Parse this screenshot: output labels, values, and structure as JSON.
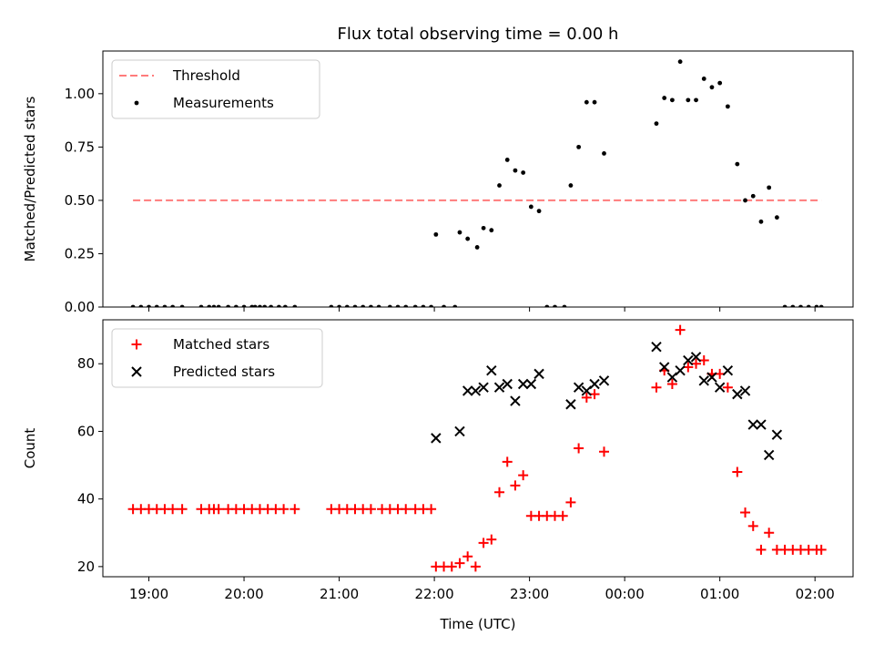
{
  "chart_data": [
    {
      "type": "scatter",
      "title": "Flux total observing time = 0.00 h",
      "xlabel": "",
      "ylabel": "Matched/Predicted stars",
      "xlim": [
        "18:31",
        "02:24"
      ],
      "ylim": [
        0,
        1.2
      ],
      "x_ticks": [
        "19:00",
        "20:00",
        "21:00",
        "22:00",
        "23:00",
        "00:00",
        "01:00",
        "02:00"
      ],
      "y_ticks": [
        "0.00",
        "0.25",
        "0.50",
        "0.75",
        "1.00"
      ],
      "legend_position": "top-left",
      "threshold": {
        "name": "Threshold",
        "y": 0.5,
        "x_range": [
          "18:50",
          "02:04"
        ],
        "color": "#ff7b7b",
        "style": "dashed"
      },
      "series": [
        {
          "name": "Measurements",
          "color": "#000000",
          "marker": "dot",
          "points": [
            [
              "18:50",
              0
            ],
            [
              "18:55",
              0
            ],
            [
              "19:00",
              0
            ],
            [
              "19:05",
              0
            ],
            [
              "19:10",
              0
            ],
            [
              "19:15",
              0
            ],
            [
              "19:21",
              0
            ],
            [
              "19:33",
              0
            ],
            [
              "19:38",
              0
            ],
            [
              "19:41",
              0
            ],
            [
              "19:44",
              0
            ],
            [
              "19:50",
              0
            ],
            [
              "19:55",
              0
            ],
            [
              "20:00",
              0
            ],
            [
              "20:05",
              0
            ],
            [
              "20:07",
              0
            ],
            [
              "20:10",
              0
            ],
            [
              "20:13",
              0
            ],
            [
              "20:17",
              0
            ],
            [
              "20:22",
              0
            ],
            [
              "20:26",
              0
            ],
            [
              "20:32",
              0
            ],
            [
              "20:55",
              0
            ],
            [
              "21:00",
              0
            ],
            [
              "21:05",
              0
            ],
            [
              "21:10",
              0
            ],
            [
              "21:15",
              0
            ],
            [
              "21:20",
              0
            ],
            [
              "21:25",
              0
            ],
            [
              "21:32",
              0
            ],
            [
              "21:37",
              0
            ],
            [
              "21:42",
              0
            ],
            [
              "21:48",
              0
            ],
            [
              "21:53",
              0
            ],
            [
              "21:58",
              0
            ],
            [
              "22:06",
              0
            ],
            [
              "22:13",
              0
            ],
            [
              "22:01",
              0.34
            ],
            [
              "22:16",
              0.35
            ],
            [
              "22:21",
              0.32
            ],
            [
              "22:27",
              0.28
            ],
            [
              "22:31",
              0.37
            ],
            [
              "22:36",
              0.36
            ],
            [
              "22:41",
              0.57
            ],
            [
              "22:46",
              0.69
            ],
            [
              "22:51",
              0.64
            ],
            [
              "22:56",
              0.63
            ],
            [
              "23:01",
              0.47
            ],
            [
              "23:06",
              0.45
            ],
            [
              "23:11",
              0
            ],
            [
              "23:16",
              0
            ],
            [
              "23:22",
              0
            ],
            [
              "23:26",
              0.57
            ],
            [
              "23:31",
              0.75
            ],
            [
              "23:36",
              0.96
            ],
            [
              "23:41",
              0.96
            ],
            [
              "23:47",
              0.72
            ],
            [
              "00:20",
              0.86
            ],
            [
              "00:25",
              0.98
            ],
            [
              "00:30",
              0.97
            ],
            [
              "00:35",
              1.15
            ],
            [
              "00:40",
              0.97
            ],
            [
              "00:45",
              0.97
            ],
            [
              "00:50",
              1.07
            ],
            [
              "00:55",
              1.03
            ],
            [
              "01:00",
              1.05
            ],
            [
              "01:05",
              0.94
            ],
            [
              "01:11",
              0.67
            ],
            [
              "01:16",
              0.5
            ],
            [
              "01:21",
              0.52
            ],
            [
              "01:26",
              0.4
            ],
            [
              "01:31",
              0.56
            ],
            [
              "01:36",
              0.42
            ],
            [
              "01:41",
              0
            ],
            [
              "01:46",
              0
            ],
            [
              "01:51",
              0
            ],
            [
              "01:56",
              0
            ],
            [
              "02:01",
              0
            ],
            [
              "02:04",
              0
            ]
          ]
        }
      ]
    },
    {
      "type": "scatter",
      "title": "",
      "xlabel": "Time (UTC)",
      "ylabel": "Count",
      "xlim": [
        "18:31",
        "02:24"
      ],
      "ylim": [
        17,
        93
      ],
      "x_ticks": [
        "19:00",
        "20:00",
        "21:00",
        "22:00",
        "23:00",
        "00:00",
        "01:00",
        "02:00"
      ],
      "y_ticks": [
        "20",
        "40",
        "60",
        "80"
      ],
      "legend_position": "top-left",
      "series": [
        {
          "name": "Matched stars",
          "color": "#ff0000",
          "marker": "plus",
          "points": [
            [
              "18:50",
              37
            ],
            [
              "18:55",
              37
            ],
            [
              "19:00",
              37
            ],
            [
              "19:05",
              37
            ],
            [
              "19:10",
              37
            ],
            [
              "19:15",
              37
            ],
            [
              "19:21",
              37
            ],
            [
              "19:33",
              37
            ],
            [
              "19:38",
              37
            ],
            [
              "19:41",
              37
            ],
            [
              "19:44",
              37
            ],
            [
              "19:50",
              37
            ],
            [
              "19:55",
              37
            ],
            [
              "20:00",
              37
            ],
            [
              "20:05",
              37
            ],
            [
              "20:10",
              37
            ],
            [
              "20:15",
              37
            ],
            [
              "20:20",
              37
            ],
            [
              "20:25",
              37
            ],
            [
              "20:32",
              37
            ],
            [
              "20:55",
              37
            ],
            [
              "21:00",
              37
            ],
            [
              "21:05",
              37
            ],
            [
              "21:10",
              37
            ],
            [
              "21:15",
              37
            ],
            [
              "21:20",
              37
            ],
            [
              "21:27",
              37
            ],
            [
              "21:32",
              37
            ],
            [
              "21:37",
              37
            ],
            [
              "21:42",
              37
            ],
            [
              "21:48",
              37
            ],
            [
              "21:53",
              37
            ],
            [
              "21:58",
              37
            ],
            [
              "22:01",
              20
            ],
            [
              "22:06",
              20
            ],
            [
              "22:11",
              20
            ],
            [
              "22:16",
              21
            ],
            [
              "22:21",
              23
            ],
            [
              "22:26",
              20
            ],
            [
              "22:31",
              27
            ],
            [
              "22:36",
              28
            ],
            [
              "22:41",
              42
            ],
            [
              "22:46",
              51
            ],
            [
              "22:51",
              44
            ],
            [
              "22:56",
              47
            ],
            [
              "23:01",
              35
            ],
            [
              "23:06",
              35
            ],
            [
              "23:11",
              35
            ],
            [
              "23:16",
              35
            ],
            [
              "23:21",
              35
            ],
            [
              "23:26",
              39
            ],
            [
              "23:31",
              55
            ],
            [
              "23:36",
              70
            ],
            [
              "23:41",
              71
            ],
            [
              "23:47",
              54
            ],
            [
              "00:20",
              73
            ],
            [
              "00:25",
              78
            ],
            [
              "00:30",
              74
            ],
            [
              "00:35",
              90
            ],
            [
              "00:40",
              79
            ],
            [
              "00:45",
              80
            ],
            [
              "00:50",
              81
            ],
            [
              "00:55",
              77
            ],
            [
              "01:00",
              77
            ],
            [
              "01:05",
              73
            ],
            [
              "01:11",
              48
            ],
            [
              "01:16",
              36
            ],
            [
              "01:21",
              32
            ],
            [
              "01:26",
              25
            ],
            [
              "01:31",
              30
            ],
            [
              "01:36",
              25
            ],
            [
              "01:41",
              25
            ],
            [
              "01:46",
              25
            ],
            [
              "01:51",
              25
            ],
            [
              "01:56",
              25
            ],
            [
              "02:01",
              25
            ],
            [
              "02:04",
              25
            ]
          ]
        },
        {
          "name": "Predicted stars",
          "color": "#000000",
          "marker": "x",
          "points": [
            [
              "22:01",
              58
            ],
            [
              "22:16",
              60
            ],
            [
              "22:21",
              72
            ],
            [
              "22:26",
              72
            ],
            [
              "22:31",
              73
            ],
            [
              "22:36",
              78
            ],
            [
              "22:41",
              73
            ],
            [
              "22:46",
              74
            ],
            [
              "22:51",
              69
            ],
            [
              "22:56",
              74
            ],
            [
              "23:01",
              74
            ],
            [
              "23:06",
              77
            ],
            [
              "23:26",
              68
            ],
            [
              "23:31",
              73
            ],
            [
              "23:36",
              72
            ],
            [
              "23:41",
              74
            ],
            [
              "23:47",
              75
            ],
            [
              "00:20",
              85
            ],
            [
              "00:25",
              79
            ],
            [
              "00:30",
              76
            ],
            [
              "00:35",
              78
            ],
            [
              "00:40",
              81
            ],
            [
              "00:45",
              82
            ],
            [
              "00:50",
              75
            ],
            [
              "00:55",
              76
            ],
            [
              "01:00",
              73
            ],
            [
              "01:05",
              78
            ],
            [
              "01:11",
              71
            ],
            [
              "01:16",
              72
            ],
            [
              "01:21",
              62
            ],
            [
              "01:26",
              62
            ],
            [
              "01:31",
              53
            ],
            [
              "01:36",
              59
            ]
          ]
        }
      ]
    }
  ]
}
